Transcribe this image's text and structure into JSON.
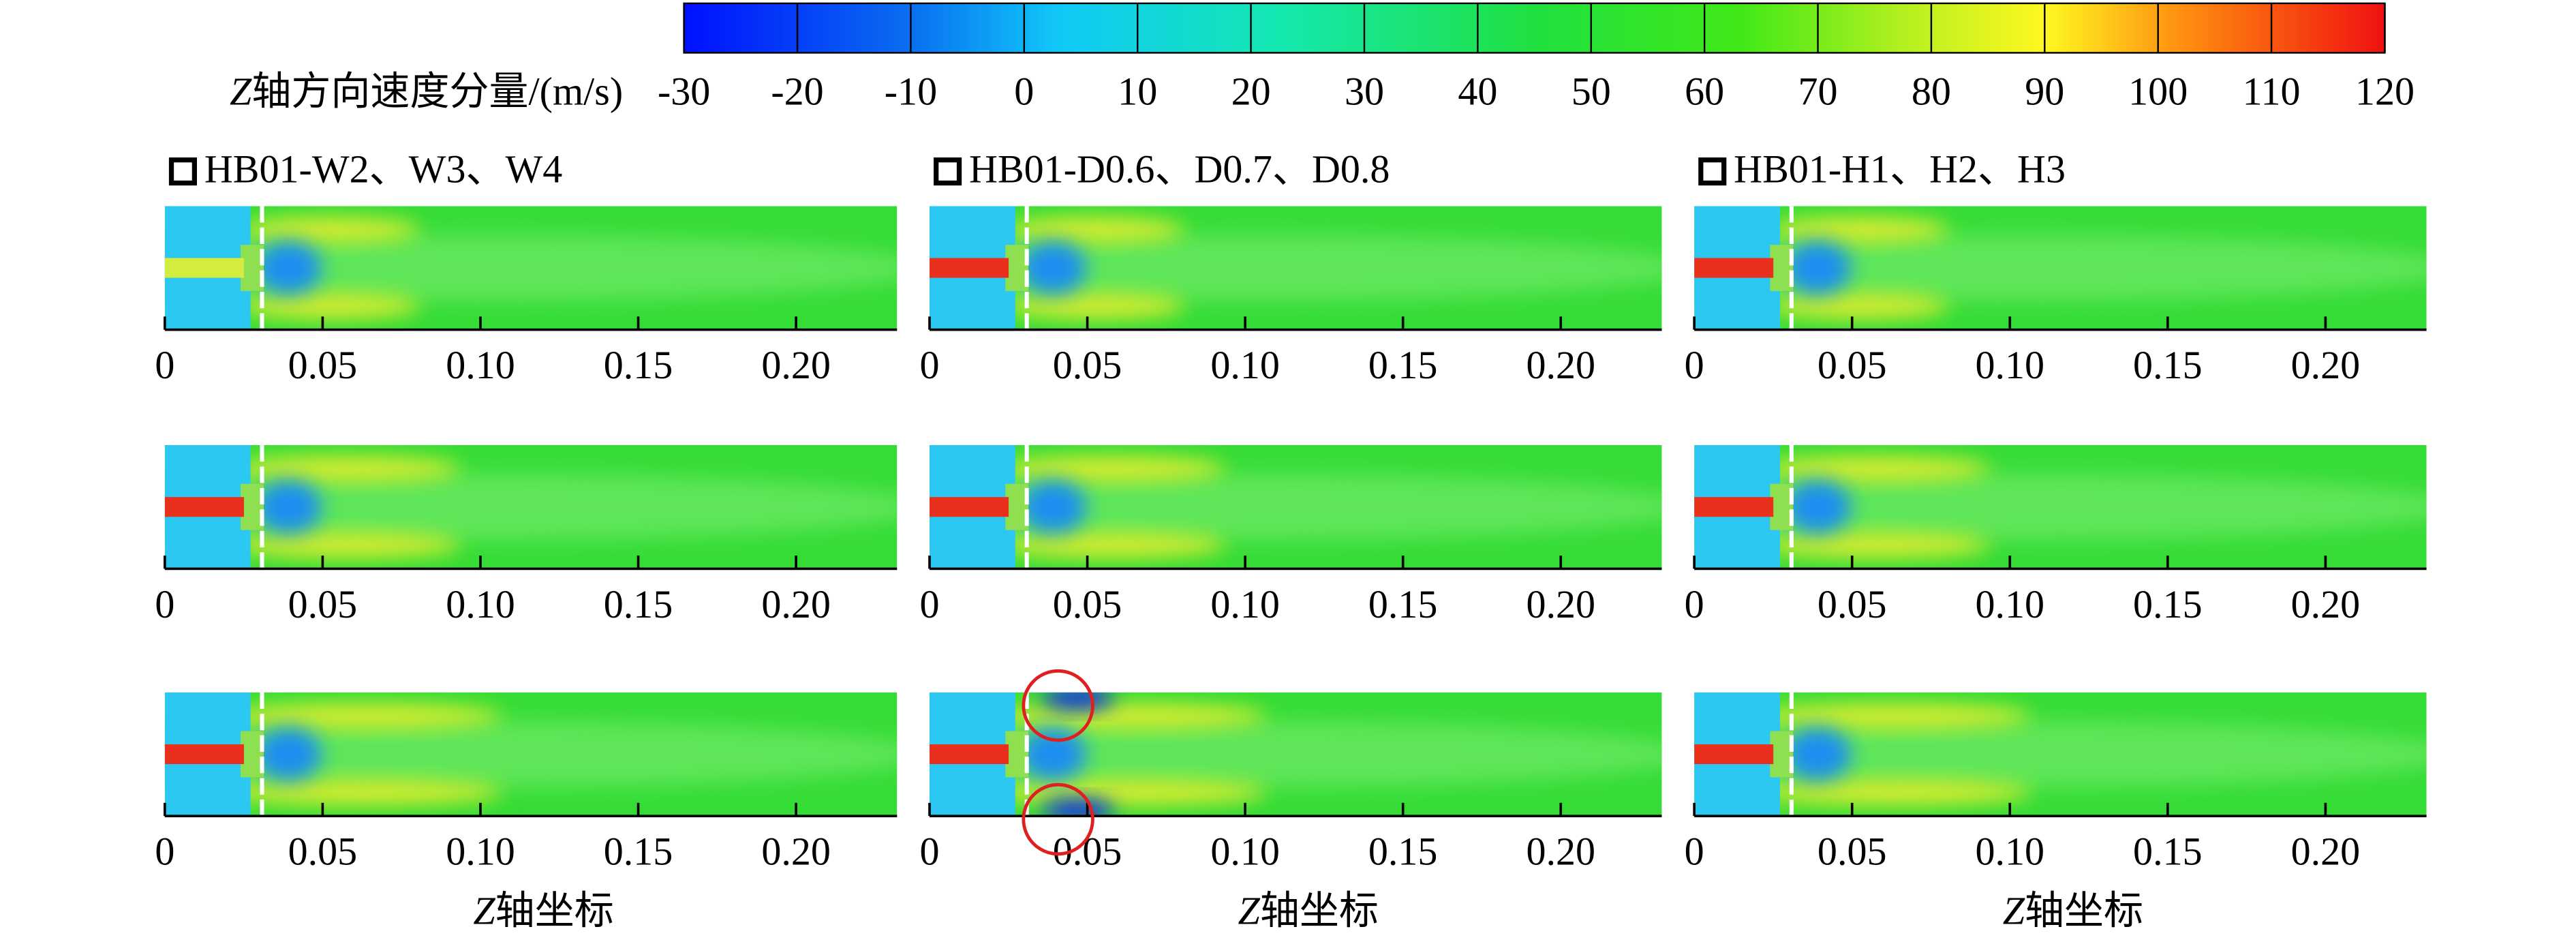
{
  "colorbar": {
    "label_var": "Z",
    "label": "轴方向速度分量/(m/s)",
    "range": [
      -30,
      120
    ],
    "ticks": [
      -30,
      -20,
      -10,
      0,
      10,
      20,
      30,
      40,
      50,
      60,
      70,
      80,
      90,
      100,
      110,
      120
    ]
  },
  "panels": {
    "columns": [
      {
        "label": "HB01-W2、W3、W4"
      },
      {
        "label": "HB01-D0.6、D0.7、D0.8"
      },
      {
        "label": "HB01-H1、H2、H3"
      }
    ],
    "xaxis_var": "Z",
    "xaxis_label": "轴坐标",
    "xlim": [
      0,
      0.232
    ],
    "xticks": [
      0,
      0.05,
      {
        "value": 0.1,
        "label": "0.10"
      },
      0.15,
      {
        "value": 0.2,
        "label": "0.20"
      }
    ]
  }
}
